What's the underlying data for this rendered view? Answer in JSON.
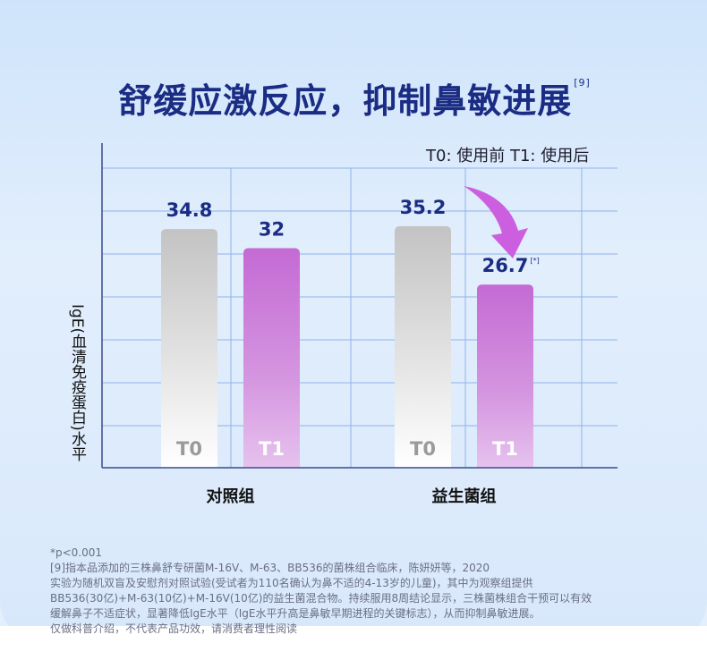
{
  "title": "舒缓应激反应，抑制鼻敏进展",
  "title_ref": "[9]",
  "legend_text": "T0: 使用前   T1: 使用后",
  "chart_data": {
    "type": "bar",
    "ylabel": "IgE(血清免疫蛋白)水平",
    "ylim": [
      0,
      40
    ],
    "grid": true,
    "categories": [
      "对照组",
      "益生菌组"
    ],
    "series": [
      {
        "name": "T0",
        "values": [
          34.8,
          35.2
        ],
        "color": "#c9c9c9"
      },
      {
        "name": "T1",
        "values": [
          32,
          26.7
        ],
        "color": "#c66ad6"
      }
    ],
    "value_labels": [
      [
        "34.8",
        "35.2"
      ],
      [
        "32",
        "26.7"
      ]
    ],
    "annotation": "[*]"
  },
  "colors": {
    "title": "#1a2c83",
    "grid": "#8fb3ea",
    "t0_top": "#c4c4c4",
    "t1_top": "#c46ad4",
    "arrow": "#cc5fe0"
  },
  "footnotes": [
    "*p<0.001",
    "[9]指本品添加的三株鼻舒专研菌M-16V、M-63、BB536的菌株组合临床，陈妍妍等，2020",
    "实验为随机双盲及安慰剂对照试验(受试者为110名确认为鼻不适的4-13岁的儿童)，其中为观察组提供",
    "BB536(30亿)+M-63(10亿)+M-16V(10亿)的益生菌混合物。持续服用8周结论显示，三株菌株组合干预可以有效",
    "缓解鼻子不适症状，显著降低IgE水平（IgE水平升高是鼻敏早期进程的关键标志），从而抑制鼻敏进展。",
    "仅做科普介绍，不代表产品功效，请消费者理性阅读"
  ]
}
